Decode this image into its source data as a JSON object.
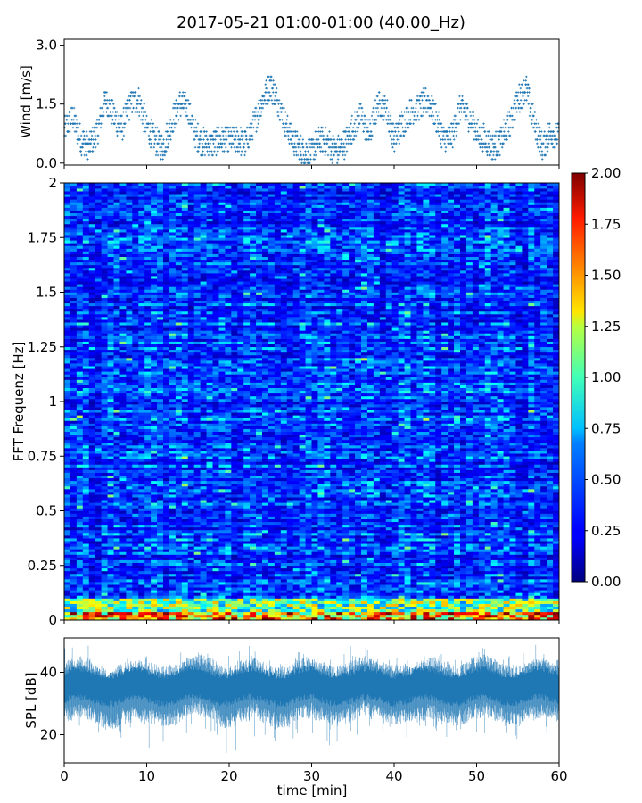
{
  "title": "2017-05-21 01:00-01:00 (40.00_Hz)",
  "chart_data": [
    {
      "type": "scatter",
      "panel": "wind",
      "ylabel": "Wind [m/s]",
      "xlabel": "",
      "xlim": [
        0,
        60
      ],
      "ylim": [
        -0.05,
        3.15
      ],
      "yticks": [
        "0.0",
        "1.5",
        "3.0"
      ],
      "ytick_values": [
        0,
        1.5,
        3
      ],
      "x_minute_values": [
        0,
        1,
        2,
        3,
        4,
        5,
        6,
        7,
        8,
        9,
        10,
        11,
        12,
        13,
        14,
        15,
        16,
        17,
        18,
        19,
        20,
        21,
        22,
        23,
        24,
        25,
        26,
        27,
        28,
        29,
        30,
        31,
        32,
        33,
        34,
        35,
        36,
        37,
        38,
        39,
        40,
        41,
        42,
        43,
        44,
        45,
        46,
        47,
        48,
        49,
        50,
        51,
        52,
        53,
        54,
        55,
        56,
        57,
        58,
        59,
        60
      ],
      "wind_envelope_mean": [
        0.8,
        1.2,
        0.6,
        0.4,
        0.8,
        1.6,
        1.2,
        0.9,
        1.5,
        1.6,
        0.9,
        0.6,
        0.4,
        1.0,
        1.5,
        1.4,
        0.7,
        0.5,
        0.5,
        0.6,
        0.6,
        0.6,
        0.5,
        1.0,
        1.6,
        2.0,
        1.5,
        0.9,
        0.5,
        0.3,
        0.3,
        0.6,
        0.5,
        0.3,
        0.5,
        0.9,
        1.2,
        0.7,
        1.5,
        1.4,
        0.6,
        1.0,
        1.3,
        1.4,
        1.6,
        1.2,
        0.6,
        0.7,
        1.4,
        1.2,
        0.8,
        0.6,
        0.4,
        0.6,
        1.0,
        1.6,
        1.9,
        1.0,
        0.4,
        0.8,
        0.7
      ],
      "color": "#1f77b4"
    },
    {
      "type": "heatmap",
      "panel": "spectrogram",
      "ylabel": "FFT Frequenz [Hz]",
      "xlabel": "",
      "xlim": [
        0,
        60
      ],
      "ylim": [
        0,
        2
      ],
      "yticks": [
        "0",
        "0.25",
        "0.5",
        "0.75",
        "1",
        "1.25",
        "1.5",
        "1.75",
        "2"
      ],
      "ytick_values": [
        0,
        0.25,
        0.5,
        0.75,
        1,
        1.25,
        1.5,
        1.75,
        2
      ],
      "colormap": "jet",
      "colorbar": {
        "vmin": 0,
        "vmax": 2,
        "ticks": [
          "0.00",
          "0.25",
          "0.50",
          "0.75",
          "1.00",
          "1.25",
          "1.50",
          "1.75",
          "2.00"
        ],
        "tick_values": [
          0,
          0.25,
          0.5,
          0.75,
          1,
          1.25,
          1.5,
          1.75,
          2
        ]
      },
      "typical_level": 0.3,
      "low_frequency_level": 1.6
    },
    {
      "type": "line",
      "panel": "spl",
      "ylabel": "SPL [dB]",
      "xlabel": "time [min]",
      "xlim": [
        0,
        60
      ],
      "ylim": [
        11,
        51
      ],
      "xticks": [
        "0",
        "10",
        "20",
        "30",
        "40",
        "50",
        "60"
      ],
      "xtick_values": [
        0,
        10,
        20,
        30,
        40,
        50,
        60
      ],
      "yticks": [
        "20",
        "40"
      ],
      "ytick_values": [
        20,
        40
      ],
      "spl_mean": 35,
      "spl_range": [
        14,
        49
      ],
      "color": "#1f77b4"
    }
  ]
}
